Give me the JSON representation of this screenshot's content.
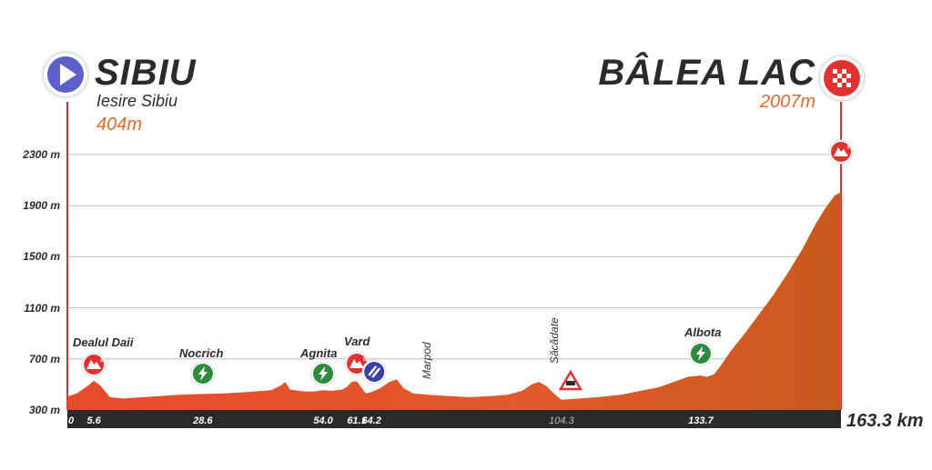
{
  "start": {
    "name": "SIBIU",
    "sub": "Iesire Sibiu",
    "alt": "404m"
  },
  "finish": {
    "name": "BÂLEA LAC",
    "alt": "2007m"
  },
  "total_distance_label": "163.3 km",
  "colors": {
    "profile_light": "#e84a2c",
    "profile_dark": "#c95a1e",
    "climb": "#e0332f",
    "sprint": "#2e8b3e",
    "feed": "#3b3fa8",
    "start": "#5b5fc7",
    "text": "#2b2b2b",
    "accent": "#e06b2a"
  },
  "chart_data": {
    "type": "area",
    "title": "",
    "xlabel": "",
    "ylabel": "",
    "xlim": [
      0,
      163.3
    ],
    "ylim": [
      300,
      2300
    ],
    "yticks": [
      300,
      700,
      1100,
      1500,
      1900,
      2300
    ],
    "ytick_labels": [
      "300 m",
      "700 m",
      "1100 m",
      "1500 m",
      "1900 m",
      "2300 m"
    ],
    "xtick_labels": [
      {
        "km": 0,
        "label": "0"
      },
      {
        "km": 5.6,
        "label": "5.6"
      },
      {
        "km": 28.6,
        "label": "28.6"
      },
      {
        "km": 54.0,
        "label": "54.0"
      },
      {
        "km": 61.1,
        "label": "61.1"
      },
      {
        "km": 64.2,
        "label": "64.2"
      },
      {
        "km": 104.3,
        "label": "104.3"
      },
      {
        "km": 133.7,
        "label": "133.7"
      }
    ],
    "x": [
      0,
      2,
      4,
      5.6,
      7,
      9,
      12,
      16,
      20,
      24,
      28.6,
      33,
      38,
      43,
      45,
      46,
      47,
      50,
      52,
      54,
      56,
      58,
      59,
      60,
      61.1,
      62,
      63,
      64.2,
      66,
      68,
      69.5,
      71,
      73,
      76,
      80,
      85,
      90,
      93,
      96,
      98,
      99.5,
      101,
      103,
      104.3,
      108,
      112,
      117,
      121,
      125,
      128,
      131,
      133.7,
      135,
      136.5,
      138,
      140,
      143,
      146,
      149,
      152,
      155,
      158,
      160,
      162,
      163.3
    ],
    "y": [
      404,
      430,
      480,
      530,
      490,
      400,
      390,
      400,
      410,
      420,
      425,
      430,
      440,
      455,
      490,
      520,
      460,
      445,
      445,
      455,
      450,
      460,
      480,
      520,
      525,
      480,
      430,
      440,
      470,
      520,
      540,
      470,
      430,
      420,
      410,
      400,
      410,
      420,
      450,
      500,
      520,
      490,
      420,
      380,
      390,
      400,
      420,
      450,
      480,
      520,
      560,
      570,
      560,
      580,
      650,
      760,
      900,
      1050,
      1200,
      1370,
      1550,
      1760,
      1880,
      1980,
      2007
    ],
    "climbs": [
      {
        "km": 5.6,
        "name": "Dealul Daii",
        "category": "c"
      },
      {
        "km": 61.1,
        "name": "Vard",
        "category": "c"
      },
      {
        "km": 163.3,
        "name": "",
        "category": "HC"
      }
    ],
    "sprints": [
      {
        "km": 28.6,
        "name": "Nocrich"
      },
      {
        "km": 54.0,
        "name": "Agnita"
      },
      {
        "km": 133.7,
        "name": "Albota"
      }
    ],
    "feed_zone": {
      "km": 64.2
    },
    "rail_crossing": {
      "km": 104.3
    },
    "places": [
      {
        "km": 71,
        "name": "Marpod"
      },
      {
        "km": 104.3,
        "name": "Săcădate"
      }
    ]
  }
}
